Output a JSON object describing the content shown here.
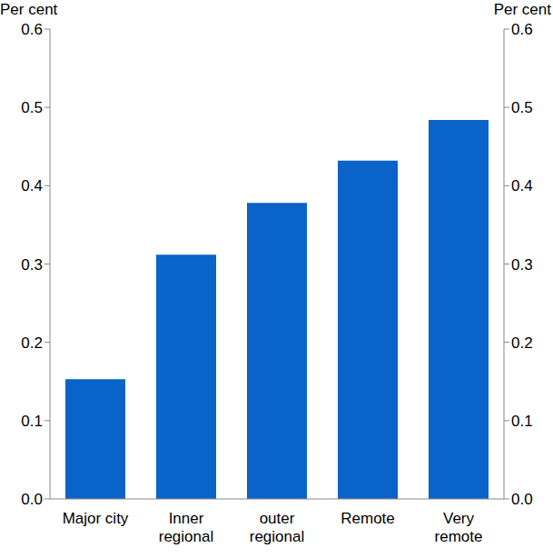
{
  "chart_data": {
    "type": "bar",
    "y_label": "Per cent",
    "categories": [
      "Major city",
      "Inner regional",
      "outer regional",
      "Remote",
      "Very remote"
    ],
    "values": [
      0.153,
      0.312,
      0.378,
      0.432,
      0.484
    ],
    "color": "#0a63c9",
    "ylim": [
      0,
      0.6
    ],
    "yticks": [
      {
        "value": 0,
        "label": "0.0"
      },
      0.1,
      0.2,
      0.3,
      0.4,
      0.5,
      0.6
    ],
    "grid": false
  }
}
